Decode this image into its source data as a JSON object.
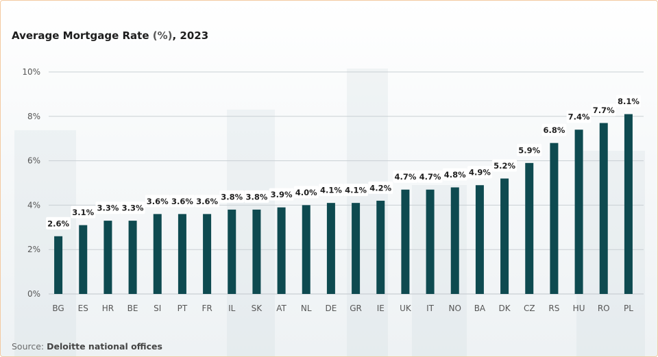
{
  "title": {
    "main": "Average Mortgage Rate",
    "unit": "(%)",
    "year": ", 2023"
  },
  "source": {
    "label": "Source:",
    "value": "Deloitte national offices"
  },
  "colors": {
    "bar": "#0e4a50",
    "grid": "#c9cfd3",
    "label_bg": "#ffffff"
  },
  "chart_data": {
    "type": "bar",
    "title": "Average Mortgage Rate (%), 2023",
    "xlabel": "",
    "ylabel": "",
    "ylim": [
      0,
      10
    ],
    "yticks": [
      0,
      2,
      4,
      6,
      8,
      10
    ],
    "ytick_labels": [
      "0%",
      "2%",
      "4%",
      "6%",
      "8%",
      "10%"
    ],
    "grid": true,
    "categories": [
      "BG",
      "ES",
      "HR",
      "BE",
      "SI",
      "PT",
      "FR",
      "IL",
      "SK",
      "AT",
      "NL",
      "DE",
      "GR",
      "IE",
      "UK",
      "IT",
      "NO",
      "BA",
      "DK",
      "CZ",
      "RS",
      "HU",
      "RO",
      "PL"
    ],
    "values": [
      2.6,
      3.1,
      3.3,
      3.3,
      3.6,
      3.6,
      3.6,
      3.8,
      3.8,
      3.9,
      4.0,
      4.1,
      4.1,
      4.2,
      4.7,
      4.7,
      4.8,
      4.9,
      5.2,
      5.9,
      6.8,
      7.4,
      7.7,
      8.1
    ],
    "value_labels": [
      "2.6%",
      "3.1%",
      "3.3%",
      "3.3%",
      "3.6%",
      "3.6%",
      "3.6%",
      "3.8%",
      "3.8%",
      "3.9%",
      "4.0%",
      "4.1%",
      "4.1%",
      "4.2%",
      "4.7%",
      "4.7%",
      "4.8%",
      "4.9%",
      "5.2%",
      "5.9%",
      "6.8%",
      "7.4%",
      "7.7%",
      "8.1%"
    ]
  }
}
